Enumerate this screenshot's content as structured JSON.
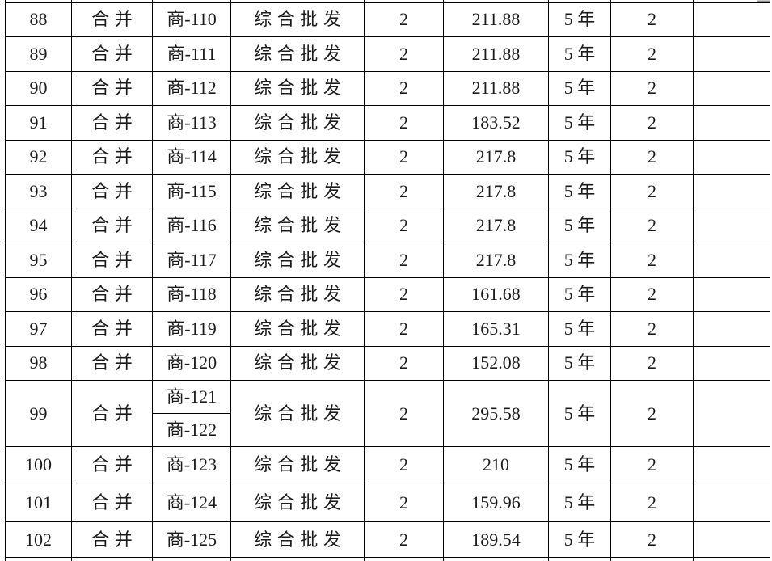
{
  "colors": {
    "text": "#1c1c1c",
    "highlight_red": "#e6332c",
    "border": "#000000",
    "background": "#ffffff"
  },
  "table": {
    "rows": [
      {
        "seq": "88",
        "merge": "合并",
        "unit": "商-110",
        "business": "综合批发",
        "count": "2",
        "amount": "211.88",
        "term": "5 年",
        "term_count": "2",
        "blank": ""
      },
      {
        "seq": "89",
        "merge": "合并",
        "unit": "商-111",
        "business": "综合批发",
        "count": "2",
        "amount": "211.88",
        "term": "5 年",
        "term_count": "2",
        "blank": ""
      },
      {
        "seq": "90",
        "merge": "合并",
        "unit": "商-112",
        "business": "综合批发",
        "count": "2",
        "amount": "211.88",
        "term": "5 年",
        "term_count": "2",
        "blank": ""
      },
      {
        "seq": "91",
        "merge": "合并",
        "unit": "商-113",
        "business": "综合批发",
        "count": "2",
        "amount": "183.52",
        "term": "5 年",
        "term_count": "2",
        "blank": ""
      },
      {
        "seq": "92",
        "merge": "合并",
        "unit": "商-114",
        "business": "综合批发",
        "count": "2",
        "amount": "217.8",
        "term": "5 年",
        "term_count": "2",
        "blank": ""
      },
      {
        "seq": "93",
        "merge": "合并",
        "unit": "商-115",
        "business": "综合批发",
        "count": "2",
        "amount": "217.8",
        "term": "5 年",
        "term_count": "2",
        "blank": ""
      },
      {
        "seq": "94",
        "merge": "合并",
        "unit": "商-116",
        "business": "综合批发",
        "count": "2",
        "amount": "217.8",
        "term": "5 年",
        "term_count": "2",
        "blank": ""
      },
      {
        "seq": "95",
        "merge": "合并",
        "unit": "商-117",
        "business": "综合批发",
        "count": "2",
        "amount": "217.8",
        "term": "5 年",
        "term_count": "2",
        "blank": ""
      },
      {
        "seq": "96",
        "merge": "合并",
        "unit": "商-118",
        "business": "综合批发",
        "count": "2",
        "amount": "161.68",
        "term": "5 年",
        "term_count": "2",
        "blank": ""
      },
      {
        "seq": "97",
        "merge": "合并",
        "unit": "商-119",
        "business": "综合批发",
        "count": "2",
        "amount": "165.31",
        "term": "5 年",
        "term_count": "2",
        "blank": ""
      },
      {
        "seq": "98",
        "merge": "合并",
        "unit": "商-120",
        "business": "综合批发",
        "count": "2",
        "amount": "152.08",
        "term": "5 年",
        "term_count": "2",
        "blank": ""
      },
      {
        "seq": "99",
        "merge": "合并",
        "units": [
          "商-121",
          "商-122"
        ],
        "business": "综合批发",
        "count": "2",
        "amount": "295.58",
        "term": "5 年",
        "term_count": "2",
        "blank": ""
      },
      {
        "seq": "100",
        "merge": "合并",
        "unit": "商-123",
        "business": "综合批发",
        "count": "2",
        "amount": "210",
        "term": "5 年",
        "term_count": "2",
        "blank": ""
      },
      {
        "seq": "101",
        "merge": "合并",
        "unit": "商-124",
        "business": "综合批发",
        "count": "2",
        "amount": "159.96",
        "term": "5 年",
        "term_count": "2",
        "blank": ""
      },
      {
        "seq": "102",
        "merge": "合并",
        "unit": "商-125",
        "business": "综合批发",
        "count": "2",
        "amount": "189.54",
        "term": "5 年",
        "term_count": "2",
        "blank": ""
      }
    ]
  }
}
